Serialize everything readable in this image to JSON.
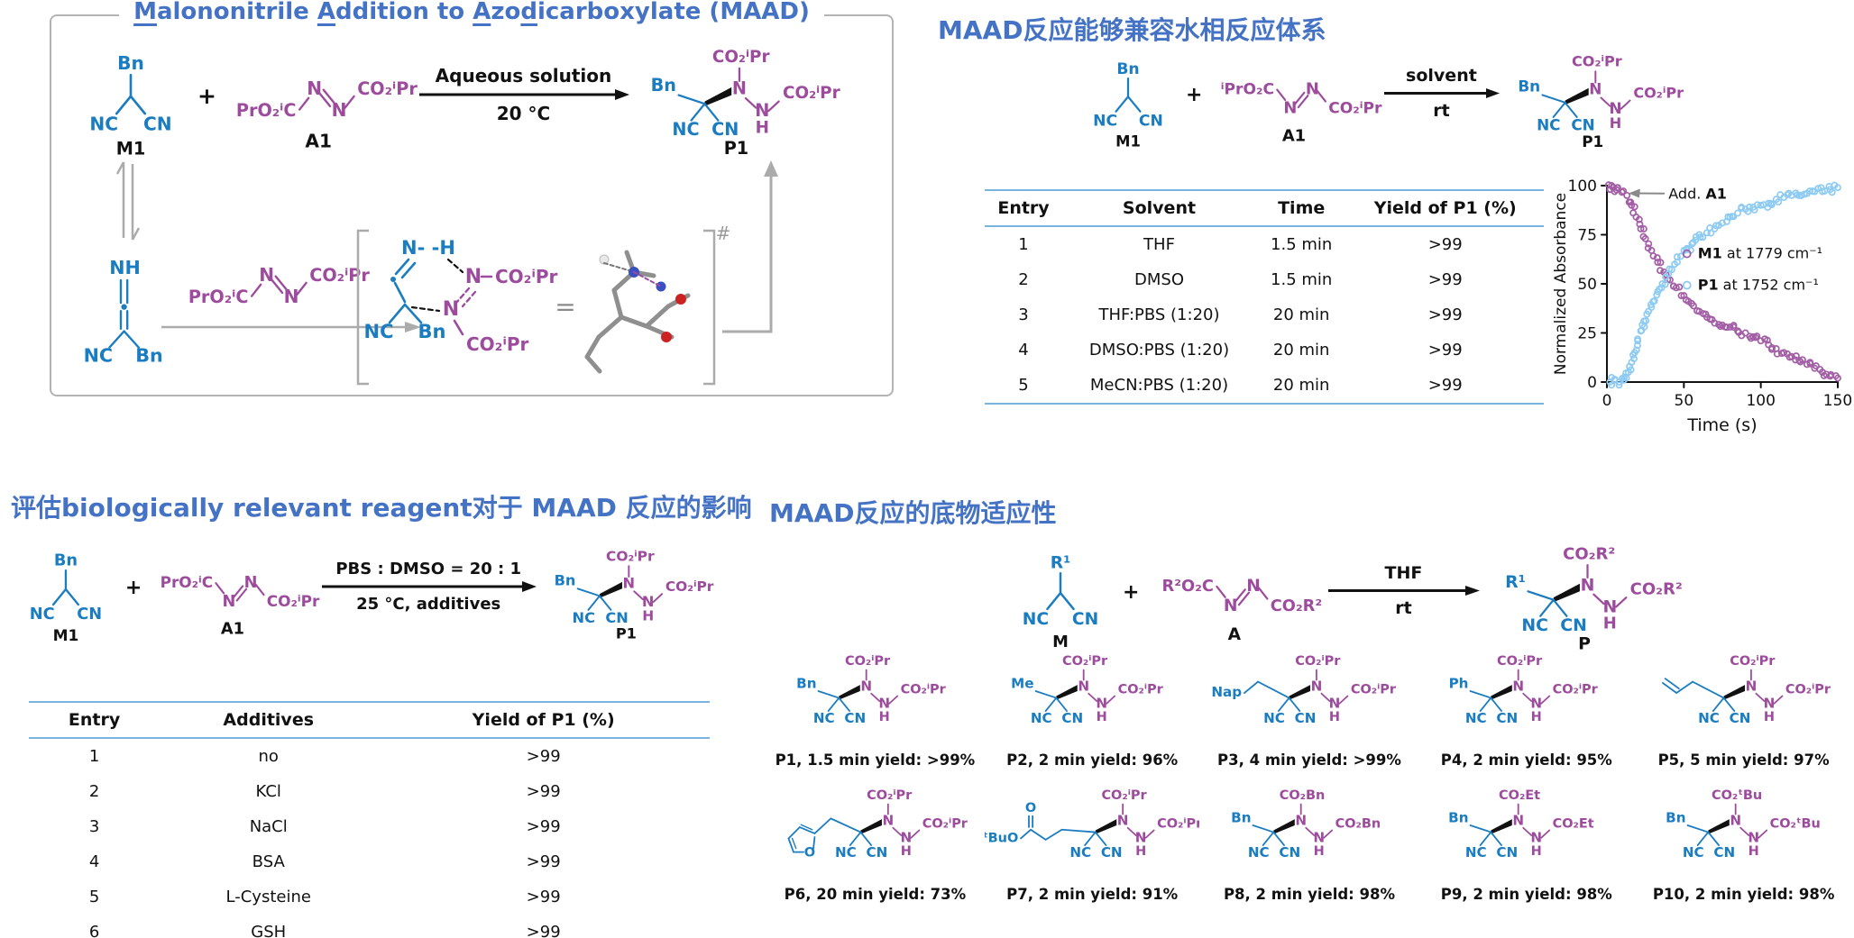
{
  "colors": {
    "blue": "#1A7CC1",
    "purple": "#9D4B9D",
    "title_blue": "#4472C4",
    "gray": "#A8A8A8",
    "black": "#111111",
    "table_rule": "#79B4DE"
  },
  "core_labels": {
    "n": "N",
    "h": "H",
    "nc": "NC",
    "cn": "CN"
  },
  "panel_maad": {
    "title_segments": [
      {
        "t": "M",
        "u": true
      },
      {
        "t": "alononitrile ",
        "u": false
      },
      {
        "t": "A",
        "u": true
      },
      {
        "t": "ddition to ",
        "u": false
      },
      {
        "t": "A",
        "u": true
      },
      {
        "t": "zo",
        "u": false
      },
      {
        "t": "d",
        "u": true
      },
      {
        "t": "icarboxylate (MAAD)",
        "u": false
      }
    ],
    "plus": "+",
    "m1": {
      "sub": "Bn",
      "label": "M1"
    },
    "a1": {
      "left": "PrO₂ⁱC",
      "right": "CO₂ⁱPr",
      "label": "A1",
      "dir": "up"
    },
    "arrow": {
      "top": "Aqueous solution",
      "bottom": "20 °C"
    },
    "p1": {
      "left": "Bn",
      "left_type": "label",
      "top_ester": "CO₂ⁱPr",
      "right_ester": "CO₂ⁱPr",
      "label": "P1"
    },
    "ketenimine": {
      "nh": "NH",
      "nc": "NC",
      "bn": "Bn"
    },
    "mech_azo": {
      "left": "PrO₂ⁱC",
      "right": "CO₂ⁱPr",
      "dir": "up"
    },
    "ts": {
      "n_h": "N- -H",
      "n": "N",
      "n2": "N",
      "ester_top": "CO₂ⁱPr",
      "ester_bottom": "CO₂ⁱPr",
      "nc": "NC",
      "bn": "Bn",
      "equals": "=",
      "double_dagger": "#"
    }
  },
  "panel_aqueous": {
    "title": "MAAD反应能够兼容水相反应体系",
    "plus": "+",
    "m1": {
      "sub": "Bn",
      "label": "M1"
    },
    "a1": {
      "left": "ⁱPrO₂C",
      "right": "CO₂ⁱPr",
      "label": "A1",
      "dir": "down"
    },
    "arrow": {
      "top": "solvent",
      "bottom": "rt"
    },
    "p1": {
      "left": "Bn",
      "left_type": "label",
      "top_ester": "CO₂ⁱPr",
      "right_ester": "CO₂ⁱPr",
      "label": "P1"
    },
    "table": {
      "headers": [
        "Entry",
        "Solvent",
        "Time",
        "Yield of P1 (%)"
      ],
      "rows": [
        [
          "1",
          "THF",
          "1.5 min",
          ">99"
        ],
        [
          "2",
          "DMSO",
          "1.5 min",
          ">99"
        ],
        [
          "3",
          "THF:PBS (1:20)",
          "20 min",
          ">99"
        ],
        [
          "4",
          "DMSO:PBS (1:20)",
          "20 min",
          ">99"
        ],
        [
          "5",
          "MeCN:PBS (1:20)",
          "20 min",
          ">99"
        ]
      ]
    }
  },
  "chart_data": {
    "type": "scatter",
    "title": "",
    "xlabel": "Time (s)",
    "ylabel": "Normalized Absorbance",
    "xlim": [
      0,
      150
    ],
    "ylim": [
      0,
      100
    ],
    "xticks": [
      0,
      50,
      100,
      150
    ],
    "yticks": [
      0,
      25,
      50,
      75,
      100
    ],
    "grid": false,
    "legend_position": "center-right",
    "annotation": {
      "prefix": "Add. ",
      "bold": "A1"
    },
    "series": [
      {
        "name": "M1 at 1779 cm⁻¹",
        "label_bold": "M1",
        "label_rest": " at 1779 cm⁻¹",
        "color": "#A35FA6",
        "marker": "open-circle",
        "points": [
          [
            2,
            98
          ],
          [
            3,
            100
          ],
          [
            5,
            97
          ],
          [
            7,
            99
          ],
          [
            13,
            95
          ],
          [
            16,
            90
          ],
          [
            19,
            84
          ],
          [
            22,
            78
          ],
          [
            25,
            73
          ],
          [
            29,
            67
          ],
          [
            33,
            61
          ],
          [
            37,
            56
          ],
          [
            41,
            52
          ],
          [
            45,
            48
          ],
          [
            50,
            44
          ],
          [
            55,
            40
          ],
          [
            60,
            36
          ],
          [
            65,
            33
          ],
          [
            70,
            30
          ],
          [
            75,
            29
          ],
          [
            80,
            28
          ],
          [
            85,
            26
          ],
          [
            90,
            25
          ],
          [
            95,
            23
          ],
          [
            100,
            21
          ],
          [
            105,
            19
          ],
          [
            110,
            17
          ],
          [
            115,
            15
          ],
          [
            120,
            13
          ],
          [
            125,
            11
          ],
          [
            130,
            9
          ],
          [
            135,
            7
          ],
          [
            140,
            5
          ],
          [
            145,
            3
          ],
          [
            150,
            2
          ]
        ]
      },
      {
        "name": "P1 at 1752 cm⁻¹",
        "label_bold": "P1",
        "label_rest": " at 1752 cm⁻¹",
        "color": "#8ECBF2",
        "marker": "open-circle",
        "points": [
          [
            2,
            0
          ],
          [
            5,
            1
          ],
          [
            8,
            0
          ],
          [
            11,
            1
          ],
          [
            14,
            5
          ],
          [
            16,
            10
          ],
          [
            18,
            15
          ],
          [
            20,
            21
          ],
          [
            22,
            26
          ],
          [
            24,
            31
          ],
          [
            27,
            36
          ],
          [
            30,
            41
          ],
          [
            33,
            46
          ],
          [
            36,
            50
          ],
          [
            40,
            55
          ],
          [
            44,
            60
          ],
          [
            48,
            64
          ],
          [
            52,
            68
          ],
          [
            56,
            71
          ],
          [
            60,
            75
          ],
          [
            65,
            76
          ],
          [
            70,
            78
          ],
          [
            75,
            81
          ],
          [
            80,
            84
          ],
          [
            85,
            86
          ],
          [
            90,
            88
          ],
          [
            95,
            89
          ],
          [
            100,
            90
          ],
          [
            105,
            91
          ],
          [
            110,
            93
          ],
          [
            115,
            94
          ],
          [
            120,
            95
          ],
          [
            125,
            95
          ],
          [
            130,
            96
          ],
          [
            135,
            97
          ],
          [
            140,
            97
          ],
          [
            145,
            98
          ],
          [
            150,
            99
          ]
        ]
      }
    ]
  },
  "panel_additives": {
    "title": "评估biologically relevant reagent对于 MAAD 反应的影响",
    "plus": "+",
    "m1": {
      "sub": "Bn",
      "label": "M1"
    },
    "a1": {
      "left": "PrO₂ⁱC",
      "right": "CO₂ⁱPr",
      "label": "A1",
      "dir": "down"
    },
    "arrow": {
      "top": "PBS : DMSO = 20 : 1",
      "bottom": "25 °C, additives"
    },
    "p1": {
      "left": "Bn",
      "left_type": "label",
      "top_ester": "CO₂ⁱPr",
      "right_ester": "CO₂ⁱPr",
      "label": "P1"
    },
    "table": {
      "headers": [
        "Entry",
        "Additives",
        "Yield of P1 (%)"
      ],
      "rows": [
        [
          "1",
          "no",
          ">99"
        ],
        [
          "2",
          "KCl",
          ">99"
        ],
        [
          "3",
          "NaCl",
          ">99"
        ],
        [
          "4",
          "BSA",
          ">99"
        ],
        [
          "5",
          "L-Cysteine",
          ">99"
        ],
        [
          "6",
          "GSH",
          ">99"
        ]
      ]
    }
  },
  "panel_scope": {
    "title": "MAAD反应的底物适应性",
    "plus": "+",
    "m": {
      "sub": "R¹",
      "label": "M"
    },
    "a": {
      "left": "R²O₂C",
      "right": "CO₂R²",
      "label": "A",
      "dir": "down"
    },
    "arrow": {
      "top": "THF",
      "bottom": "rt"
    },
    "p": {
      "left": "R¹",
      "left_type": "label",
      "top_ester": "CO₂R²",
      "right_ester": "CO₂R²",
      "label": "P"
    },
    "products": [
      {
        "id": "P1",
        "left": "Bn",
        "left_type": "label",
        "top_ester": "CO₂ⁱPr",
        "right_ester": "CO₂ⁱPr",
        "caption": "P1, 1.5 min yield: >99%"
      },
      {
        "id": "P2",
        "left": "Me",
        "left_type": "label",
        "top_ester": "CO₂ⁱPr",
        "right_ester": "CO₂ⁱPr",
        "caption": "P2, 2 min yield: 96%"
      },
      {
        "id": "P3",
        "left": "Nap",
        "left_type": "chain",
        "top_ester": "CO₂ⁱPr",
        "right_ester": "CO₂ⁱPr",
        "caption": "P3, 4 min yield: >99%"
      },
      {
        "id": "P4",
        "left": "Ph",
        "left_type": "label",
        "top_ester": "CO₂ⁱPr",
        "right_ester": "CO₂ⁱPr",
        "caption": "P4, 2 min yield: 95%"
      },
      {
        "id": "P5",
        "left": "",
        "left_type": "allyl",
        "top_ester": "CO₂ⁱPr",
        "right_ester": "CO₂ⁱPr",
        "caption": "P5, 5 min yield: 97%"
      },
      {
        "id": "P6",
        "left": "O",
        "left_type": "furan",
        "top_ester": "CO₂ⁱPr",
        "right_ester": "CO₂ⁱPr",
        "caption": "P6, 20 min yield: 73%"
      },
      {
        "id": "P7",
        "left": "ᵗBuO",
        "left_type": "ester",
        "carbonyl_o": "O",
        "top_ester": "CO₂ⁱPr",
        "right_ester": "CO₂ⁱPr",
        "caption": "P7, 2 min yield: 91%"
      },
      {
        "id": "P8",
        "left": "Bn",
        "left_type": "label",
        "top_ester": "CO₂Bn",
        "right_ester": "CO₂Bn",
        "caption": "P8, 2 min yield: 98%"
      },
      {
        "id": "P9",
        "left": "Bn",
        "left_type": "label",
        "top_ester": "CO₂Et",
        "right_ester": "CO₂Et",
        "caption": "P9, 2 min yield: 98%"
      },
      {
        "id": "P10",
        "left": "Bn",
        "left_type": "label",
        "top_ester": "CO₂ᵗBu",
        "right_ester": "CO₂ᵗBu",
        "caption": "P10, 2 min yield: 98%"
      }
    ]
  }
}
